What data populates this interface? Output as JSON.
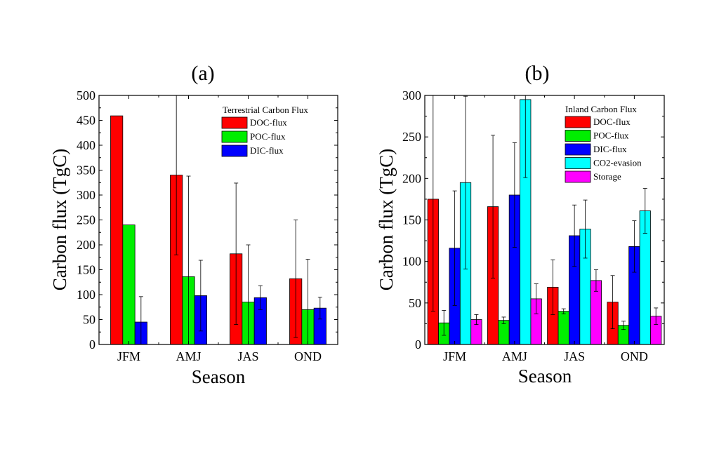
{
  "chart_data": [
    {
      "type": "bar",
      "panel_label": "(a)",
      "title": "(a)",
      "xlabel": "Season",
      "ylabel": "Carbon flux (TgC)",
      "categories": [
        "JFM",
        "AMJ",
        "JAS",
        "OND"
      ],
      "ylim": [
        0,
        500
      ],
      "yticks": [
        0,
        50,
        100,
        150,
        200,
        250,
        300,
        350,
        400,
        450,
        500
      ],
      "grid": false,
      "legend_title": "Terrestrial Carbon Flux",
      "legend_position": "top-right",
      "series": [
        {
          "name": "DOC-flux",
          "color": "#ff0000",
          "values": [
            459,
            340,
            182,
            132
          ],
          "error": [
            null,
            160,
            142,
            118
          ]
        },
        {
          "name": "POC-flux",
          "color": "#00ee00",
          "values": [
            240,
            136,
            85,
            70
          ],
          "error": [
            null,
            202,
            115,
            101
          ]
        },
        {
          "name": "DIC-flux",
          "color": "#0000ff",
          "values": [
            45,
            98,
            94,
            73
          ],
          "error": [
            51,
            71,
            24,
            22
          ]
        }
      ]
    },
    {
      "type": "bar",
      "panel_label": "(b)",
      "title": "(b)",
      "xlabel": "Season",
      "ylabel": "Carbon flux (TgC)",
      "categories": [
        "JFM",
        "AMJ",
        "JAS",
        "OND"
      ],
      "ylim": [
        0,
        300
      ],
      "yticks": [
        0,
        50,
        100,
        150,
        200,
        250,
        300
      ],
      "grid": false,
      "legend_title": "Inland Carbon Flux",
      "legend_position": "top-right",
      "series": [
        {
          "name": "DOC-flux",
          "color": "#ff0000",
          "values": [
            175,
            166,
            69,
            51
          ],
          "error": [
            135,
            86,
            33,
            32
          ]
        },
        {
          "name": "POC-flux",
          "color": "#00ee00",
          "values": [
            26,
            29,
            40,
            23
          ],
          "error": [
            15,
            4,
            3,
            5
          ]
        },
        {
          "name": "DIC-flux",
          "color": "#0000ff",
          "values": [
            116,
            180,
            131,
            118
          ],
          "error": [
            69,
            63,
            37,
            31
          ]
        },
        {
          "name": "CO2-evasion",
          "color": "#00ffff",
          "values": [
            195,
            295,
            139,
            161
          ],
          "error": [
            104,
            94,
            35,
            27
          ]
        },
        {
          "name": "Storage",
          "color": "#ff00ff",
          "values": [
            30,
            55,
            77,
            34
          ],
          "error": [
            6,
            18,
            13,
            10
          ]
        }
      ]
    }
  ]
}
